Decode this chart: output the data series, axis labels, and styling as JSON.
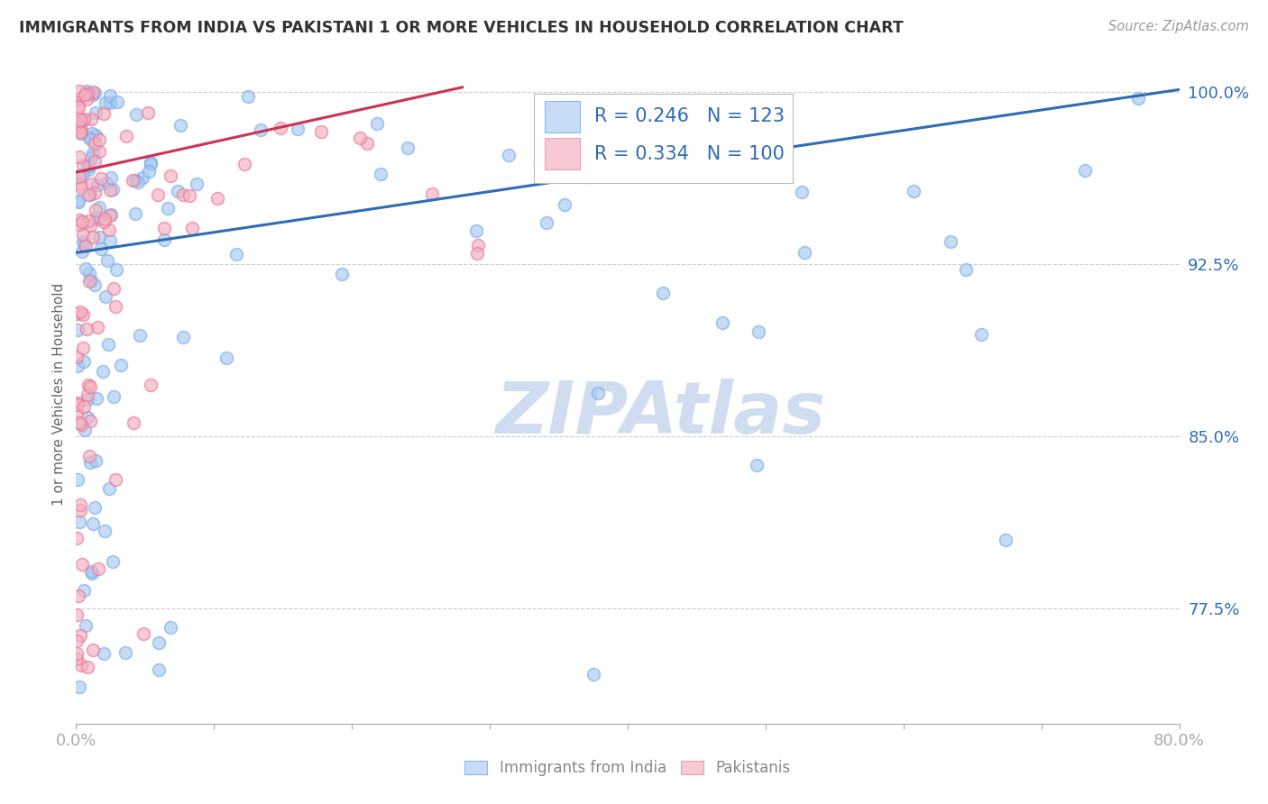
{
  "title": "IMMIGRANTS FROM INDIA VS PAKISTANI 1 OR MORE VEHICLES IN HOUSEHOLD CORRELATION CHART",
  "source": "Source: ZipAtlas.com",
  "ylabel": "1 or more Vehicles in Household",
  "xlabel_india": "Immigrants from India",
  "xlabel_pakistanis": "Pakistanis",
  "R_india": 0.246,
  "N_india": 123,
  "R_pakistan": 0.334,
  "N_pakistan": 100,
  "india_color": "#A8C8F0",
  "india_edge_color": "#7AAEE8",
  "pakistan_color": "#F4B0C0",
  "pakistan_edge_color": "#E87898",
  "india_line_color": "#2E6DB4",
  "pakistan_line_color": "#CC3355",
  "legend_fill_india": "#C8DCF8",
  "legend_fill_pakistan": "#F8C8D4",
  "legend_edge_india": "#88B8E8",
  "legend_edge_pakistan": "#F0A0B8",
  "watermark_color": "#D0DCF0",
  "background_color": "#FFFFFF",
  "grid_color": "#CCCCCC",
  "title_color": "#333333",
  "axis_tick_color": "#2E6DB4",
  "ylabel_color": "#666666",
  "source_color": "#999999",
  "bottom_legend_color": "#888888",
  "xlim": [
    0.0,
    0.8
  ],
  "ylim": [
    0.725,
    1.012
  ],
  "y_ticks": [
    0.775,
    0.85,
    0.925,
    1.0
  ],
  "x_ticks": [
    0.0,
    0.1,
    0.2,
    0.3,
    0.4,
    0.5,
    0.6,
    0.7,
    0.8
  ],
  "india_line_x": [
    0.0,
    0.8
  ],
  "india_line_y": [
    0.93,
    1.001
  ],
  "pakistan_line_x": [
    0.0,
    0.28
  ],
  "pakistan_line_y": [
    0.965,
    1.002
  ],
  "marker_size": 100
}
